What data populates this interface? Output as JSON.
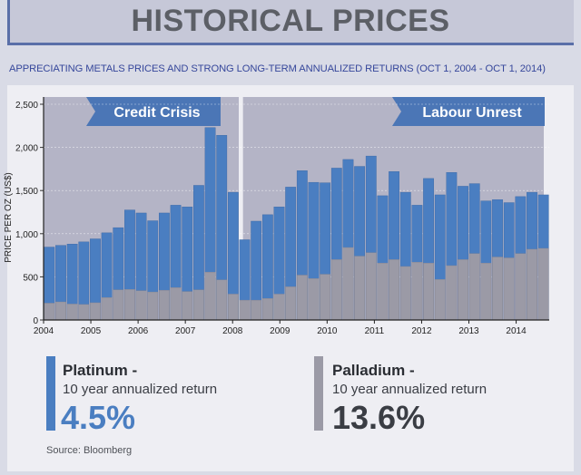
{
  "header": {
    "title": "HISTORICAL PRICES",
    "subtitle": "APPRECIATING METALS PRICES AND STRONG LONG-TERM ANNUALIZED RETURNS (OCT 1, 2004 - OCT 1, 2014)"
  },
  "colors": {
    "platinum": "#4a7ec1",
    "palladium": "#9b9aa6",
    "crisis_band": "#b4b4c6",
    "banner": "#4b76b6"
  },
  "chart_data": {
    "type": "bar",
    "ylabel": "PRICE PER OZ (US$)",
    "ylim": [
      0,
      2500
    ],
    "yticks": [
      "0",
      "500",
      "1,000",
      "1,500",
      "2,000",
      "2,500"
    ],
    "ytick_values": [
      0,
      500,
      1000,
      1500,
      2000,
      2500
    ],
    "xticks": [
      "2004",
      "2005",
      "2006",
      "2007",
      "2008",
      "2009",
      "2010",
      "2011",
      "2012",
      "2013",
      "2014"
    ],
    "annotations": [
      {
        "label": "Credit Crisis",
        "period": [
          "2004",
          "2008"
        ]
      },
      {
        "label": "Labour Unrest",
        "period": [
          "2008",
          "2014"
        ]
      }
    ],
    "series": [
      {
        "name": "Platinum",
        "values": [
          845,
          865,
          880,
          905,
          940,
          1010,
          1070,
          1275,
          1240,
          1150,
          1240,
          1330,
          1310,
          1560,
          2230,
          2140,
          1480,
          930,
          1145,
          1220,
          1310,
          1540,
          1730,
          1595,
          1590,
          1760,
          1860,
          1780,
          1900,
          1440,
          1720,
          1480,
          1330,
          1640,
          1450,
          1710,
          1550,
          1580,
          1380,
          1395,
          1360,
          1430,
          1480,
          1450
        ]
      },
      {
        "name": "Palladium",
        "values": [
          195,
          210,
          185,
          180,
          200,
          260,
          350,
          355,
          340,
          325,
          345,
          375,
          330,
          350,
          555,
          465,
          300,
          230,
          230,
          250,
          300,
          385,
          520,
          480,
          530,
          700,
          840,
          740,
          780,
          660,
          700,
          620,
          670,
          660,
          470,
          630,
          700,
          770,
          660,
          730,
          720,
          770,
          820,
          830
        ]
      }
    ]
  },
  "legend": {
    "platinum": {
      "title": "Platinum -",
      "subtitle": "10 year annualized return",
      "value": "4.5%"
    },
    "palladium": {
      "title": "Palladium -",
      "subtitle": "10 year annualized return",
      "value": "13.6%"
    }
  },
  "source": "Source: Bloomberg"
}
